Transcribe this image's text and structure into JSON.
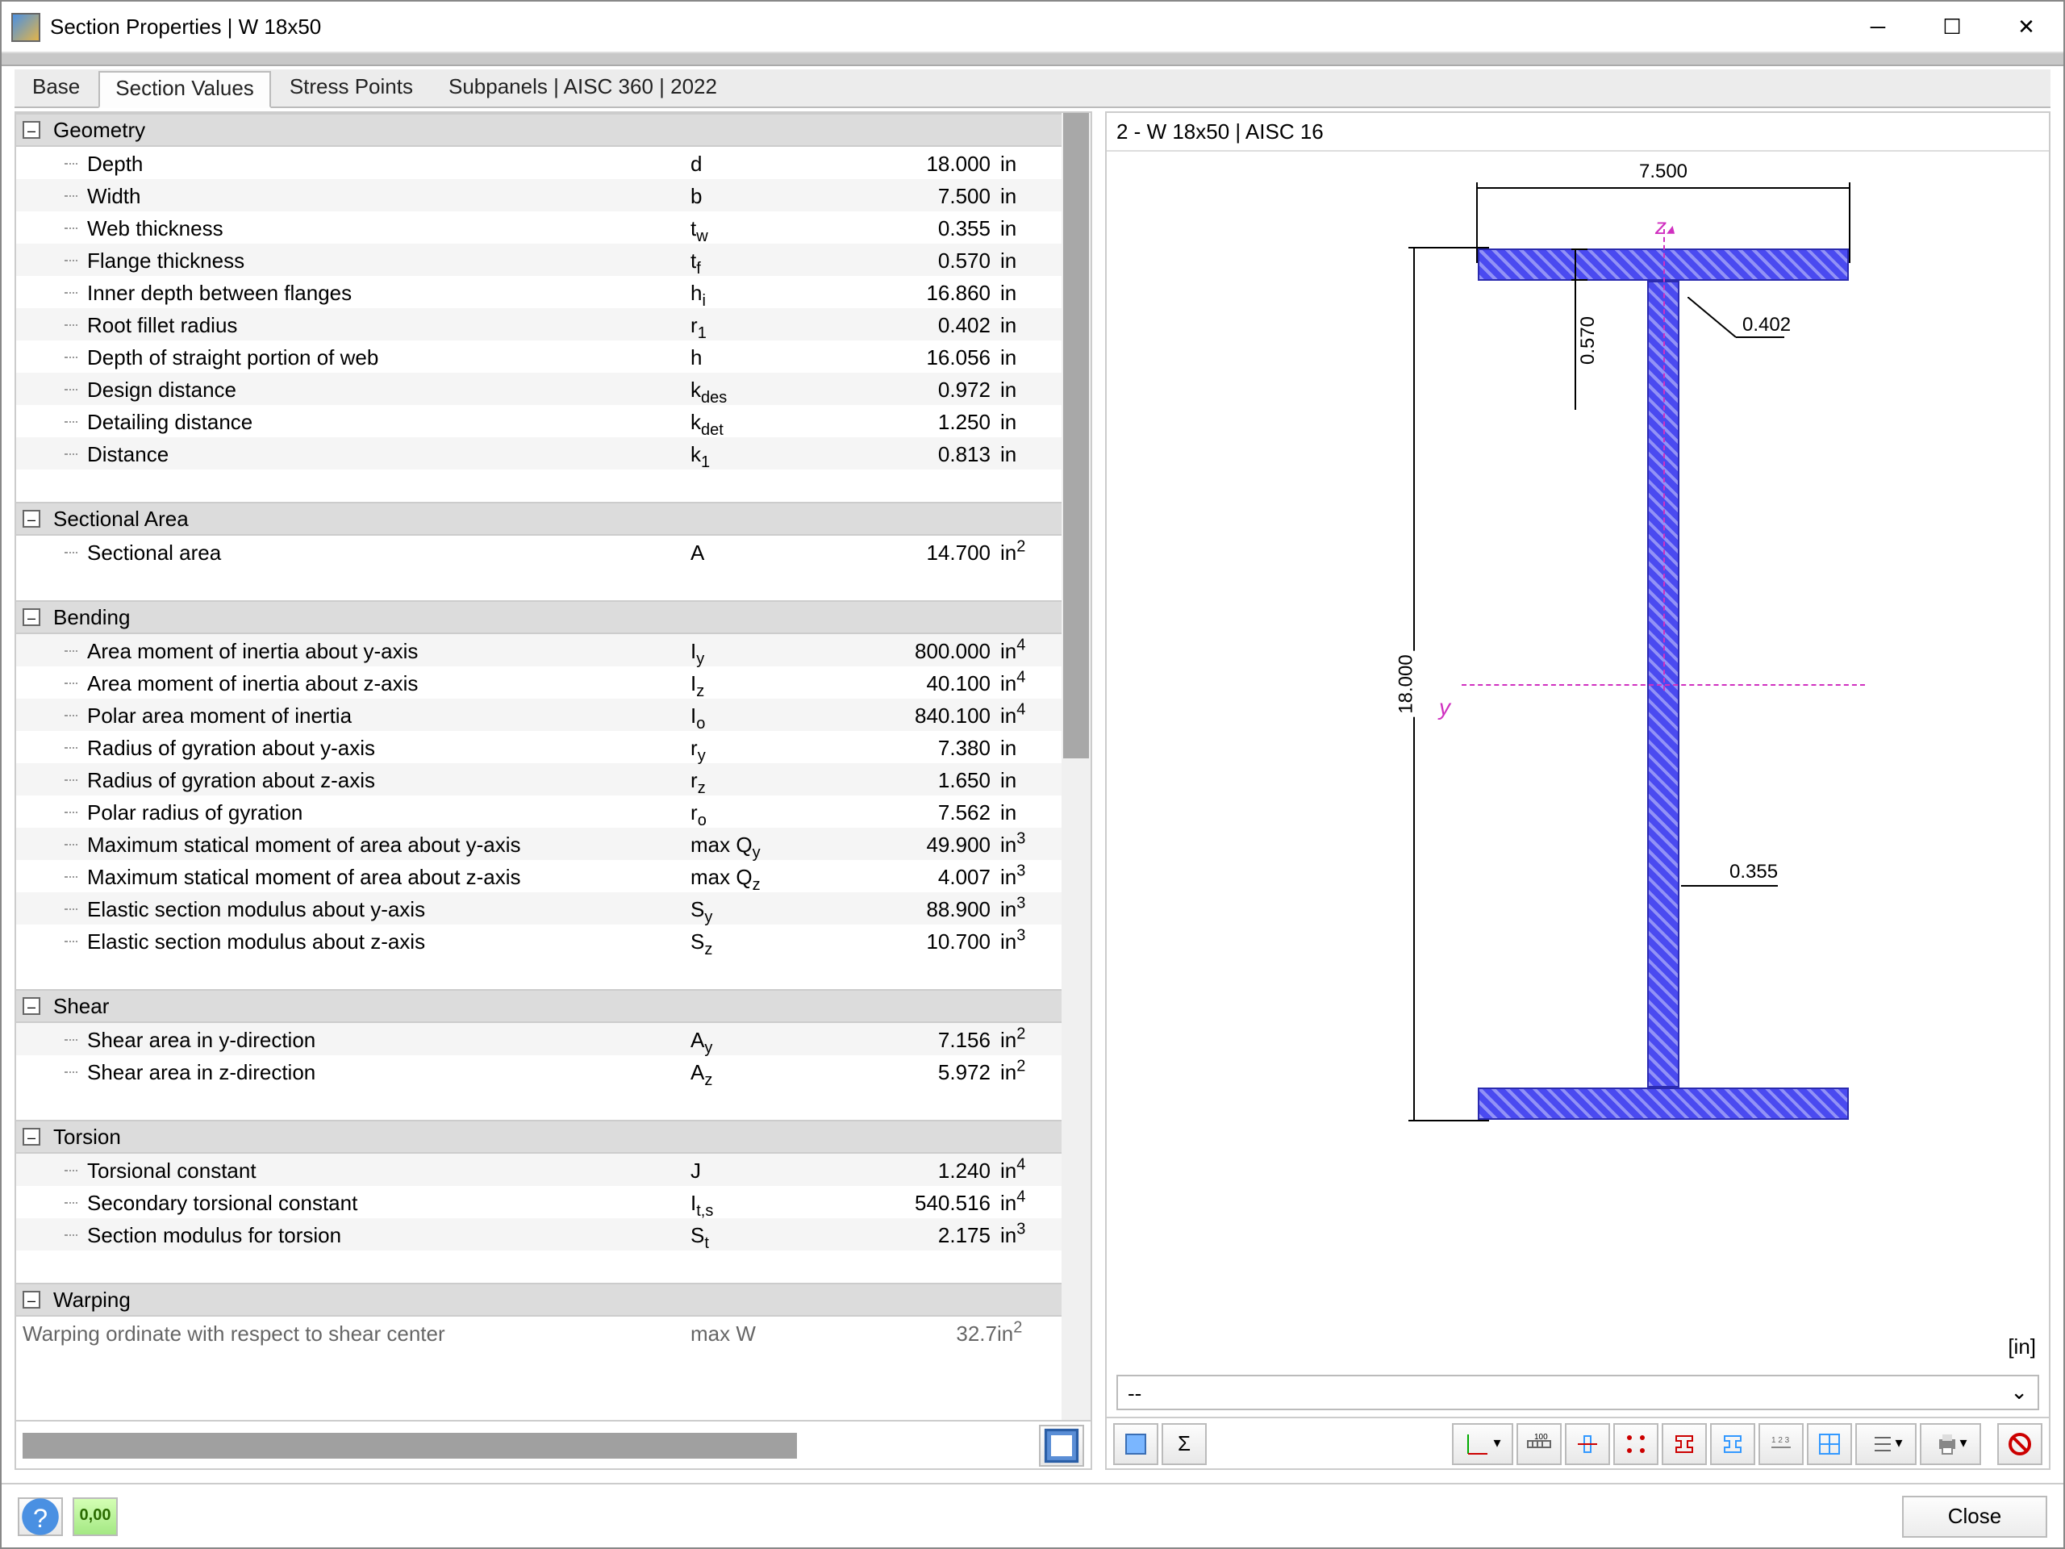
{
  "window": {
    "title": "Section Properties | W 18x50"
  },
  "tabs": [
    "Base",
    "Section Values",
    "Stress Points",
    "Subpanels | AISC 360 | 2022"
  ],
  "activeTab": 1,
  "preview": {
    "header": "2 - W 18x50 | AISC 16",
    "unit_label": "[in]",
    "beam": {
      "width_label": "7.500",
      "depth_label": "18.000",
      "flange_th_label": "0.570",
      "web_th_label": "0.355",
      "fillet_label": "0.402",
      "fill_color": "#5a5af2",
      "edge_color": "#2b2baf",
      "axis_color": "#d030c0"
    }
  },
  "combo": {
    "value": "--"
  },
  "groups": [
    {
      "name": "Geometry",
      "rows": [
        {
          "desc": "Depth",
          "sym": "d",
          "val": "18.000",
          "unit": "in"
        },
        {
          "desc": "Width",
          "sym": "b",
          "val": "7.500",
          "unit": "in"
        },
        {
          "desc": "Web thickness",
          "sym": "t<sub>w</sub>",
          "val": "0.355",
          "unit": "in"
        },
        {
          "desc": "Flange thickness",
          "sym": "t<sub>f</sub>",
          "val": "0.570",
          "unit": "in"
        },
        {
          "desc": "Inner depth between flanges",
          "sym": "h<sub>i</sub>",
          "val": "16.860",
          "unit": "in"
        },
        {
          "desc": "Root fillet radius",
          "sym": "r<sub>1</sub>",
          "val": "0.402",
          "unit": "in"
        },
        {
          "desc": "Depth of straight portion of web",
          "sym": "h",
          "val": "16.056",
          "unit": "in"
        },
        {
          "desc": "Design distance",
          "sym": "k<sub>des</sub>",
          "val": "0.972",
          "unit": "in"
        },
        {
          "desc": "Detailing distance",
          "sym": "k<sub>det</sub>",
          "val": "1.250",
          "unit": "in"
        },
        {
          "desc": "Distance",
          "sym": "k<sub>1</sub>",
          "val": "0.813",
          "unit": "in"
        }
      ]
    },
    {
      "name": "Sectional Area",
      "rows": [
        {
          "desc": "Sectional area",
          "sym": "A",
          "val": "14.700",
          "unit": "in<sup>2</sup>"
        }
      ]
    },
    {
      "name": "Bending",
      "rows": [
        {
          "desc": "Area moment of inertia about y-axis",
          "sym": "I<sub>y</sub>",
          "val": "800.000",
          "unit": "in<sup>4</sup>"
        },
        {
          "desc": "Area moment of inertia about z-axis",
          "sym": "I<sub>z</sub>",
          "val": "40.100",
          "unit": "in<sup>4</sup>"
        },
        {
          "desc": "Polar area moment of inertia",
          "sym": "I<sub>o</sub>",
          "val": "840.100",
          "unit": "in<sup>4</sup>"
        },
        {
          "desc": "Radius of gyration about y-axis",
          "sym": "r<sub>y</sub>",
          "val": "7.380",
          "unit": "in"
        },
        {
          "desc": "Radius of gyration about z-axis",
          "sym": "r<sub>z</sub>",
          "val": "1.650",
          "unit": "in"
        },
        {
          "desc": "Polar radius of gyration",
          "sym": "r<sub>o</sub>",
          "val": "7.562",
          "unit": "in"
        },
        {
          "desc": "Maximum statical moment of area about y-axis",
          "sym": "max Q<sub>y</sub>",
          "val": "49.900",
          "unit": "in<sup>3</sup>"
        },
        {
          "desc": "Maximum statical moment of area about z-axis",
          "sym": "max Q<sub>z</sub>",
          "val": "4.007",
          "unit": "in<sup>3</sup>"
        },
        {
          "desc": "Elastic section modulus about y-axis",
          "sym": "S<sub>y</sub>",
          "val": "88.900",
          "unit": "in<sup>3</sup>"
        },
        {
          "desc": "Elastic section modulus about z-axis",
          "sym": "S<sub>z</sub>",
          "val": "10.700",
          "unit": "in<sup>3</sup>"
        }
      ]
    },
    {
      "name": "Shear",
      "rows": [
        {
          "desc": "Shear area in y-direction",
          "sym": "A<sub>y</sub>",
          "val": "7.156",
          "unit": "in<sup>2</sup>"
        },
        {
          "desc": "Shear area in z-direction",
          "sym": "A<sub>z</sub>",
          "val": "5.972",
          "unit": "in<sup>2</sup>"
        }
      ]
    },
    {
      "name": "Torsion",
      "rows": [
        {
          "desc": "Torsional constant",
          "sym": "J",
          "val": "1.240",
          "unit": "in<sup>4</sup>"
        },
        {
          "desc": "Secondary torsional constant",
          "sym": "I<sub>t,s</sub>",
          "val": "540.516",
          "unit": "in<sup>4</sup>"
        },
        {
          "desc": "Section modulus for torsion",
          "sym": "S<sub>t</sub>",
          "val": "2.175",
          "unit": "in<sup>3</sup>"
        }
      ]
    },
    {
      "name": "Warping",
      "rows": [
        {
          "desc": "Warping ordinate with respect to shear center",
          "sym": "max W",
          "val": "32.7",
          "unit": "in<sup>2</sup>",
          "partial": true
        }
      ]
    }
  ],
  "footer": {
    "close": "Close"
  }
}
